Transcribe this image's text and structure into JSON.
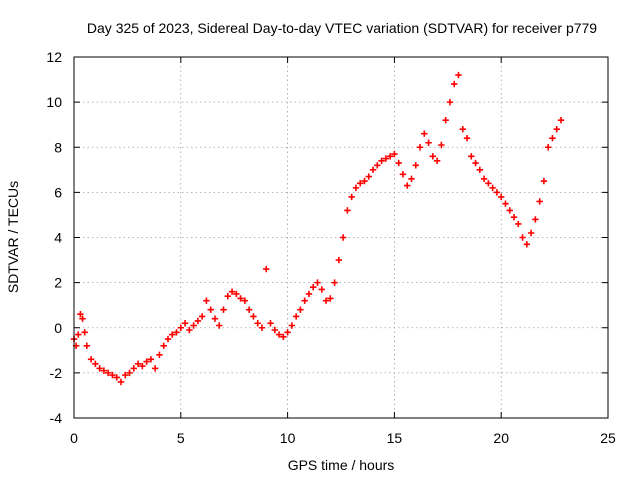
{
  "chart_data": {
    "type": "scatter",
    "title": "Day 325 of 2023, Sidereal Day-to-day VTEC variation (SDTVAR) for receiver p779",
    "xlabel": "GPS time / hours",
    "ylabel": "SDTVAR / TECUs",
    "xlim": [
      0,
      25
    ],
    "ylim": [
      -4,
      12
    ],
    "xticks": [
      0,
      5,
      10,
      15,
      20,
      25
    ],
    "yticks": [
      -4,
      -2,
      0,
      2,
      4,
      6,
      8,
      10,
      12
    ],
    "grid": true,
    "marker": "+",
    "series": [
      {
        "name": "SDTVAR",
        "color": "#ff0000",
        "x": [
          0.0,
          0.1,
          0.2,
          0.3,
          0.4,
          0.5,
          0.6,
          0.8,
          1.0,
          1.2,
          1.4,
          1.6,
          1.8,
          2.0,
          2.2,
          2.4,
          2.6,
          2.8,
          3.0,
          3.2,
          3.4,
          3.6,
          3.8,
          4.0,
          4.2,
          4.4,
          4.6,
          4.8,
          5.0,
          5.2,
          5.4,
          5.6,
          5.8,
          6.0,
          6.2,
          6.4,
          6.6,
          6.8,
          7.0,
          7.2,
          7.4,
          7.6,
          7.8,
          8.0,
          8.2,
          8.4,
          8.6,
          8.8,
          9.0,
          9.2,
          9.4,
          9.6,
          9.8,
          10.0,
          10.2,
          10.4,
          10.6,
          10.8,
          11.0,
          11.2,
          11.4,
          11.6,
          11.8,
          12.0,
          12.2,
          12.4,
          12.6,
          12.8,
          13.0,
          13.2,
          13.4,
          13.6,
          13.8,
          14.0,
          14.2,
          14.4,
          14.6,
          14.8,
          15.0,
          15.2,
          15.4,
          15.6,
          15.8,
          16.0,
          16.2,
          16.4,
          16.6,
          16.8,
          17.0,
          17.2,
          17.4,
          17.6,
          17.8,
          18.0,
          18.2,
          18.4,
          18.6,
          18.8,
          19.0,
          19.2,
          19.4,
          19.6,
          19.8,
          20.0,
          20.2,
          20.4,
          20.6,
          20.8,
          21.0,
          21.2,
          21.4,
          21.6,
          21.8,
          22.0,
          22.2,
          22.4,
          22.6,
          22.8
        ],
        "y": [
          -0.5,
          -0.8,
          -0.3,
          0.6,
          0.4,
          -0.2,
          -0.8,
          -1.4,
          -1.6,
          -1.8,
          -1.9,
          -2.0,
          -2.1,
          -2.2,
          -2.4,
          -2.1,
          -2.0,
          -1.8,
          -1.6,
          -1.7,
          -1.5,
          -1.4,
          -1.8,
          -1.2,
          -0.8,
          -0.5,
          -0.3,
          -0.2,
          0.0,
          0.2,
          -0.1,
          0.1,
          0.3,
          0.5,
          1.2,
          0.8,
          0.4,
          0.1,
          0.8,
          1.4,
          1.6,
          1.5,
          1.3,
          1.2,
          0.8,
          0.5,
          0.2,
          0.0,
          2.6,
          0.2,
          -0.1,
          -0.3,
          -0.4,
          -0.2,
          0.1,
          0.5,
          0.8,
          1.2,
          1.5,
          1.8,
          2.0,
          1.7,
          1.2,
          1.3,
          2.0,
          3.0,
          4.0,
          5.2,
          5.8,
          6.2,
          6.4,
          6.5,
          6.7,
          7.0,
          7.2,
          7.4,
          7.5,
          7.6,
          7.7,
          7.3,
          6.8,
          6.3,
          6.6,
          7.2,
          8.0,
          8.6,
          8.2,
          7.6,
          7.4,
          8.1,
          9.2,
          10.0,
          10.8,
          11.2,
          8.8,
          8.4,
          7.6,
          7.3,
          7.0,
          6.6,
          6.4,
          6.2,
          6.0,
          5.8,
          5.5,
          5.2,
          4.9,
          4.6,
          4.0,
          3.7,
          4.2,
          4.8,
          5.6,
          6.5,
          8.0,
          8.4,
          8.8,
          9.2
        ]
      }
    ]
  }
}
